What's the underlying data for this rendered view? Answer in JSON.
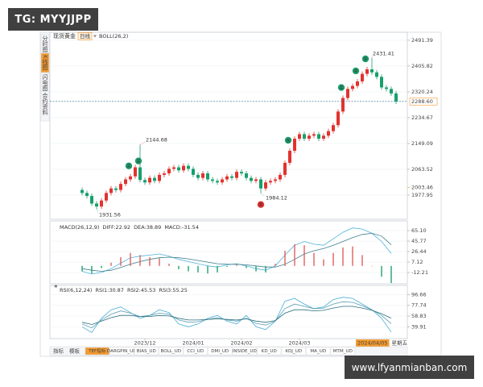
{
  "overlay": "TG: MYYJJPP",
  "watermark": "www.lfyanmianban.com",
  "sidebar": [
    "分时图",
    "K线图",
    "闪电图",
    "合约资料"
  ],
  "tabs": {
    "left": [
      "指标",
      "模板"
    ],
    "indicators": [
      "TEF指标",
      "DARGPIN_UD",
      "BIAS_UD",
      "BOLL_UD",
      "CCI_UD",
      "DMI_UD",
      "INSIDE_UD",
      "KD_UD",
      "KDJ_UD",
      "MA_UD",
      "MTM_UD"
    ]
  },
  "chart_data": [
    {
      "type": "candlestick",
      "title": "现货黄金",
      "period": "日线",
      "indicator": "BOLL(26,2)",
      "buy_label": "买",
      "sell_label": "卖",
      "weekday": "星期五",
      "up_color": "#e2332f",
      "down_color": "#16a06b",
      "categories": [
        null,
        null,
        null,
        null,
        null,
        null,
        null,
        null,
        null,
        null,
        null,
        null,
        null,
        "2023/12",
        null,
        null,
        null,
        null,
        null,
        null,
        null,
        null,
        null,
        "2024/01",
        null,
        null,
        null,
        null,
        null,
        null,
        null,
        null,
        null,
        "2024/02",
        null,
        null,
        null,
        null,
        null,
        null,
        null,
        null,
        null,
        null,
        null,
        "2024/03",
        null,
        null,
        null,
        null,
        null,
        null,
        null,
        null,
        null,
        null,
        null,
        null,
        null,
        "2024/04/05",
        null,
        null,
        null,
        null,
        null,
        null
      ],
      "open": [
        1995,
        1985,
        1975,
        1950,
        1940,
        1960,
        1985,
        2000,
        1995,
        2015,
        2030,
        2040,
        2070,
        2028,
        2020,
        2035,
        2025,
        2045,
        2050,
        2065,
        2070,
        2060,
        2075,
        2065,
        2045,
        2035,
        2050,
        2030,
        2025,
        2020,
        2030,
        2040,
        2035,
        2055,
        2050,
        2035,
        2025,
        2030,
        2000,
        2020,
        2025,
        2030,
        2045,
        2085,
        2125,
        2165,
        2180,
        2165,
        2175,
        2180,
        2165,
        2175,
        2190,
        2210,
        2255,
        2300,
        2330,
        2340,
        2355,
        2380,
        2395,
        2385,
        2370,
        2335,
        2330,
        2315
      ],
      "high": [
        2003,
        1993,
        1983,
        1958,
        1968,
        1993,
        2008,
        2008,
        2023,
        2038,
        2048,
        2078,
        2144.68,
        2036,
        2043,
        2043,
        2053,
        2058,
        2073,
        2078,
        2078,
        2083,
        2083,
        2073,
        2053,
        2058,
        2058,
        2038,
        2033,
        2038,
        2048,
        2048,
        2063,
        2063,
        2058,
        2043,
        2038,
        2038,
        2028,
        2033,
        2038,
        2053,
        2093,
        2133,
        2173,
        2188,
        2188,
        2183,
        2188,
        2188,
        2183,
        2198,
        2218,
        2263,
        2308,
        2338,
        2348,
        2363,
        2388,
        2403,
        2431.41,
        2393,
        2378,
        2343,
        2338,
        2323
      ],
      "low": [
        1977,
        1967,
        1942,
        1931.56,
        1932,
        1952,
        1977,
        1987,
        1987,
        2007,
        2022,
        2032,
        2020,
        2012,
        2012,
        2017,
        2017,
        2037,
        2042,
        2057,
        2052,
        2052,
        2057,
        2037,
        2027,
        2027,
        2022,
        2017,
        2012,
        2012,
        2022,
        2027,
        2027,
        2042,
        2027,
        2017,
        2017,
        1984.12,
        1992,
        2012,
        2017,
        2022,
        2037,
        2077,
        2117,
        2157,
        2157,
        2157,
        2167,
        2157,
        2157,
        2167,
        2182,
        2202,
        2247,
        2292,
        2322,
        2332,
        2347,
        2372,
        2377,
        2362,
        2327,
        2322,
        2307,
        2280
      ],
      "close": [
        1985,
        1975,
        1950,
        1940,
        1960,
        1985,
        2000,
        1995,
        2015,
        2030,
        2040,
        2070,
        2028,
        2020,
        2035,
        2025,
        2045,
        2050,
        2065,
        2070,
        2060,
        2075,
        2065,
        2045,
        2035,
        2050,
        2030,
        2025,
        2020,
        2030,
        2040,
        2035,
        2055,
        2050,
        2035,
        2025,
        2030,
        2000,
        2020,
        2025,
        2030,
        2045,
        2085,
        2125,
        2165,
        2180,
        2165,
        2175,
        2180,
        2165,
        2175,
        2190,
        2210,
        2255,
        2300,
        2330,
        2340,
        2355,
        2380,
        2395,
        2385,
        2370,
        2335,
        2330,
        2315,
        2288.6
      ],
      "last_price": {
        "value": 2288.6,
        "label": "2288.60"
      },
      "ref_price": {
        "value": 2003.46,
        "label": "2003.46"
      },
      "ylim": [
        1903,
        2518
      ],
      "yticks": [
        1977.95,
        2063.52,
        2149.09,
        2234.67,
        2320.24,
        2405.82,
        2491.39
      ],
      "grid": true
    },
    {
      "type": "line",
      "title": "MACD(26,12,9)",
      "series": [
        {
          "name": "DIFF:22.92",
          "color": "#4fb3dc",
          "type": "line",
          "values": [
            -10,
            -15,
            -12,
            -5,
            5,
            15,
            18,
            20,
            22,
            18,
            12,
            8,
            4,
            0,
            -2,
            2,
            4,
            0,
            -5,
            -8,
            0,
            20,
            38,
            45,
            40,
            38,
            50,
            62,
            70,
            68,
            60,
            45,
            22.92
          ]
        },
        {
          "name": "DEA:38.89",
          "color": "#3d7f90",
          "type": "line",
          "values": [
            -5,
            -8,
            -10,
            -8,
            -3,
            3,
            8,
            12,
            15,
            16,
            15,
            13,
            10,
            7,
            4,
            3,
            3,
            2,
            0,
            -2,
            -2,
            3,
            12,
            22,
            28,
            32,
            38,
            45,
            52,
            58,
            60,
            55,
            38.89
          ]
        },
        {
          "name": "MACD:-31.54",
          "color": "#e0605c",
          "negative_color": "#1fa36c",
          "type": "bar",
          "values": [
            -10,
            -14,
            -4,
            6,
            16,
            24,
            20,
            16,
            14,
            4,
            -6,
            -10,
            -12,
            -14,
            -12,
            -2,
            2,
            -4,
            -10,
            -12,
            4,
            28,
            40,
            38,
            24,
            12,
            24,
            34,
            36,
            20,
            0,
            -20,
            -31.54
          ]
        }
      ],
      "ylim": [
        -30,
        77
      ],
      "yticks": [
        {
          "value": 65.1,
          "label": "65.10"
        },
        45.77,
        26.44,
        7.12,
        -12.21
      ],
      "grid": true
    },
    {
      "type": "line",
      "title": "RSI(6,12,24)",
      "series": [
        {
          "name": "RSI1:30.87",
          "color": "#4aaed3",
          "type": "line",
          "values": [
            40,
            30,
            55,
            70,
            75,
            65,
            55,
            60,
            70,
            65,
            45,
            40,
            45,
            55,
            60,
            50,
            45,
            60,
            40,
            35,
            50,
            85,
            90,
            80,
            72,
            75,
            88,
            92,
            90,
            80,
            70,
            55,
            30.87
          ]
        },
        {
          "name": "RSI2:45.53",
          "color": "#5a9fb2",
          "type": "line",
          "values": [
            45,
            38,
            52,
            62,
            68,
            64,
            58,
            60,
            64,
            62,
            52,
            48,
            49,
            53,
            56,
            52,
            50,
            55,
            46,
            43,
            50,
            72,
            80,
            76,
            72,
            73,
            80,
            84,
            83,
            77,
            70,
            60,
            45.53
          ]
        },
        {
          "name": "RSI3:55.25",
          "color": "#2f6f80",
          "type": "line",
          "values": [
            48,
            44,
            50,
            56,
            60,
            60,
            58,
            58,
            60,
            59,
            55,
            52,
            52,
            53,
            54,
            53,
            52,
            54,
            50,
            48,
            51,
            64,
            70,
            70,
            68,
            69,
            73,
            76,
            76,
            73,
            69,
            63,
            55.25
          ]
        }
      ],
      "ylim": [
        22,
        110
      ],
      "yticks": [
        39.91,
        58.83,
        77.74,
        96.66
      ],
      "grid": true
    }
  ]
}
